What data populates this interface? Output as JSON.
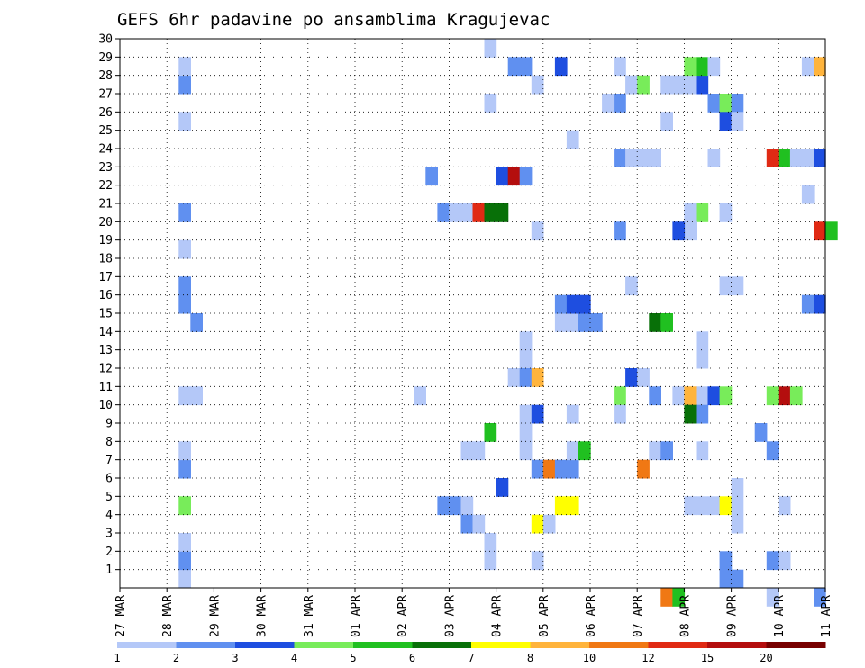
{
  "chart_data": {
    "type": "heatmap",
    "title": "GEFS 6hr padavine po ansamblima Kragujevac",
    "xlabel": "",
    "ylabel": "",
    "x_tick_labels": [
      "27 MAR",
      "28 MAR",
      "29 MAR",
      "30 MAR",
      "31 MAR",
      "01 APR",
      "02 APR",
      "03 APR",
      "04 APR",
      "05 APR",
      "06 APR",
      "07 APR",
      "08 APR",
      "09 APR",
      "10 APR",
      "11 APR"
    ],
    "y_tick_labels": [
      "1",
      "2",
      "3",
      "4",
      "5",
      "6",
      "7",
      "8",
      "9",
      "10",
      "11",
      "12",
      "13",
      "14",
      "15",
      "16",
      "17",
      "18",
      "19",
      "20",
      "21",
      "22",
      "23",
      "24",
      "25",
      "26",
      "27",
      "28",
      "29",
      "30"
    ],
    "x_range_days": [
      0,
      15
    ],
    "y_range": [
      0,
      30
    ],
    "x_step_hours": 6,
    "grid": true,
    "colorbar": {
      "labels": [
        "1",
        "2",
        "3",
        "4",
        "5",
        "6",
        "7",
        "8",
        "10",
        "12",
        "15",
        "20"
      ],
      "colors": [
        "#b4c8f8",
        "#6090f0",
        "#1e4ee0",
        "#78ec5a",
        "#20c020",
        "#087008",
        "#ffff00",
        "#ffb43c",
        "#f07814",
        "#e02a14",
        "#b40e0e",
        "#780000"
      ]
    },
    "cells": [
      [
        28.25,
        0,
        0
      ],
      [
        28.25,
        1,
        1
      ],
      [
        28.25,
        2,
        0
      ],
      [
        28.25,
        4,
        3
      ],
      [
        28.25,
        6,
        1
      ],
      [
        28.25,
        7,
        0
      ],
      [
        28.25,
        10,
        0
      ],
      [
        28.5,
        10,
        0
      ],
      [
        28.5,
        14,
        1
      ],
      [
        28.25,
        15,
        1
      ],
      [
        28.25,
        16,
        1
      ],
      [
        28.25,
        18,
        0
      ],
      [
        28.25,
        20,
        1
      ],
      [
        28.25,
        25,
        0
      ],
      [
        28.25,
        27,
        1
      ],
      [
        28.25,
        28,
        0
      ],
      [
        2.25,
        10,
        0
      ],
      [
        2.5,
        22,
        1
      ],
      [
        2.75,
        20,
        1
      ],
      [
        3.0,
        20,
        0
      ],
      [
        3.25,
        20,
        0
      ],
      [
        3.5,
        20,
        9
      ],
      [
        3.75,
        20,
        5
      ],
      [
        4.0,
        20,
        5
      ],
      [
        2.75,
        4,
        1
      ],
      [
        3.0,
        4,
        1
      ],
      [
        3.25,
        4,
        0
      ],
      [
        3.25,
        3,
        1
      ],
      [
        3.5,
        3,
        0
      ],
      [
        3.25,
        7,
        0
      ],
      [
        3.5,
        7,
        0
      ],
      [
        3.75,
        8,
        4
      ],
      [
        3.75,
        2,
        0
      ],
      [
        3.75,
        1,
        0
      ],
      [
        4.0,
        5,
        2
      ],
      [
        4.25,
        11,
        0
      ],
      [
        3.75,
        26,
        0
      ],
      [
        3.75,
        29,
        0
      ],
      [
        4.0,
        22,
        2
      ],
      [
        4.25,
        22,
        10
      ],
      [
        4.5,
        22,
        1
      ],
      [
        4.25,
        28,
        1
      ],
      [
        4.5,
        28,
        1
      ],
      [
        4.75,
        27,
        0
      ],
      [
        4.75,
        19,
        0
      ],
      [
        5.25,
        28,
        2
      ],
      [
        4.5,
        13,
        0
      ],
      [
        4.5,
        12,
        0
      ],
      [
        4.5,
        11,
        1
      ],
      [
        4.75,
        11,
        7
      ],
      [
        4.5,
        9,
        0
      ],
      [
        4.75,
        9,
        2
      ],
      [
        4.5,
        8,
        0
      ],
      [
        4.5,
        7,
        0
      ],
      [
        4.75,
        6,
        1
      ],
      [
        5.0,
        6,
        8
      ],
      [
        5.25,
        6,
        1
      ],
      [
        5.5,
        6,
        1
      ],
      [
        4.75,
        1,
        0
      ],
      [
        4.75,
        3,
        6
      ],
      [
        5.0,
        3,
        0
      ],
      [
        5.25,
        4,
        6
      ],
      [
        5.5,
        4,
        6
      ],
      [
        5.5,
        7,
        0
      ],
      [
        5.75,
        7,
        4
      ],
      [
        5.5,
        9,
        0
      ],
      [
        5.25,
        14,
        0
      ],
      [
        5.5,
        14,
        0
      ],
      [
        5.75,
        14,
        1
      ],
      [
        6.0,
        14,
        1
      ],
      [
        5.25,
        15,
        1
      ],
      [
        5.5,
        15,
        2
      ],
      [
        5.75,
        15,
        2
      ],
      [
        5.5,
        24,
        0
      ],
      [
        6.25,
        26,
        0
      ],
      [
        6.5,
        26,
        1
      ],
      [
        6.5,
        28,
        0
      ],
      [
        6.5,
        23,
        1
      ],
      [
        6.5,
        19,
        1
      ],
      [
        6.5,
        10,
        3
      ],
      [
        6.5,
        9,
        0
      ],
      [
        6.75,
        27,
        0
      ],
      [
        7.0,
        27,
        3
      ],
      [
        6.75,
        23,
        0
      ],
      [
        7.0,
        23,
        0
      ],
      [
        7.25,
        23,
        0
      ],
      [
        6.75,
        16,
        0
      ],
      [
        6.75,
        11,
        2
      ],
      [
        7.0,
        11,
        0
      ],
      [
        7.0,
        6,
        8
      ],
      [
        7.25,
        10,
        1
      ],
      [
        7.25,
        7,
        0
      ],
      [
        7.5,
        7,
        1
      ],
      [
        7.25,
        14,
        5
      ],
      [
        7.5,
        14,
        4
      ],
      [
        7.5,
        27,
        0
      ],
      [
        7.75,
        27,
        0
      ],
      [
        8.0,
        27,
        0
      ],
      [
        8.25,
        27,
        2
      ],
      [
        7.5,
        25,
        0
      ],
      [
        7.75,
        10,
        0
      ],
      [
        8.0,
        10,
        7
      ],
      [
        8.25,
        10,
        0
      ],
      [
        8.0,
        9,
        5
      ],
      [
        8.25,
        9,
        1
      ],
      [
        8.25,
        7,
        0
      ],
      [
        8.0,
        28,
        3
      ],
      [
        8.25,
        28,
        4
      ],
      [
        8.5,
        28,
        0
      ],
      [
        8.0,
        20,
        0
      ],
      [
        8.25,
        20,
        3
      ],
      [
        8.0,
        19,
        0
      ],
      [
        7.75,
        19,
        2
      ],
      [
        8.25,
        13,
        0
      ],
      [
        8.25,
        12,
        0
      ],
      [
        8.5,
        10,
        2
      ],
      [
        8.75,
        10,
        3
      ],
      [
        8.5,
        23,
        0
      ],
      [
        8.0,
        4,
        0
      ],
      [
        8.25,
        4,
        0
      ],
      [
        8.5,
        4,
        0
      ],
      [
        8.75,
        4,
        6
      ],
      [
        9.0,
        4,
        0
      ],
      [
        9.0,
        5,
        0
      ],
      [
        9.0,
        3,
        0
      ],
      [
        8.75,
        1,
        1
      ],
      [
        8.75,
        0,
        1
      ],
      [
        9.0,
        0,
        1
      ],
      [
        8.5,
        26,
        1
      ],
      [
        8.75,
        26,
        3
      ],
      [
        9.0,
        26,
        1
      ],
      [
        8.75,
        25,
        2
      ],
      [
        9.0,
        25,
        0
      ],
      [
        8.75,
        20,
        0
      ],
      [
        8.75,
        16,
        0
      ],
      [
        9.0,
        16,
        0
      ],
      [
        9.5,
        8,
        1
      ],
      [
        9.75,
        7,
        1
      ],
      [
        9.75,
        10,
        3
      ],
      [
        10.0,
        10,
        10
      ],
      [
        10.25,
        10,
        3
      ],
      [
        9.75,
        1,
        1
      ],
      [
        10.0,
        1,
        0
      ],
      [
        10.0,
        4,
        0
      ],
      [
        9.75,
        23,
        9
      ],
      [
        10.0,
        23,
        4
      ],
      [
        10.25,
        23,
        0
      ],
      [
        10.5,
        23,
        0
      ],
      [
        10.75,
        23,
        2
      ],
      [
        10.5,
        21,
        0
      ],
      [
        10.75,
        19,
        9
      ],
      [
        11.0,
        19,
        4
      ],
      [
        10.5,
        15,
        1
      ],
      [
        10.75,
        15,
        2
      ],
      [
        10.5,
        28,
        0
      ],
      [
        10.75,
        28,
        7
      ],
      [
        7.5,
        -1,
        8
      ],
      [
        7.75,
        -1,
        4
      ],
      [
        9.75,
        -1,
        0
      ],
      [
        10.75,
        -1,
        1
      ]
    ]
  }
}
